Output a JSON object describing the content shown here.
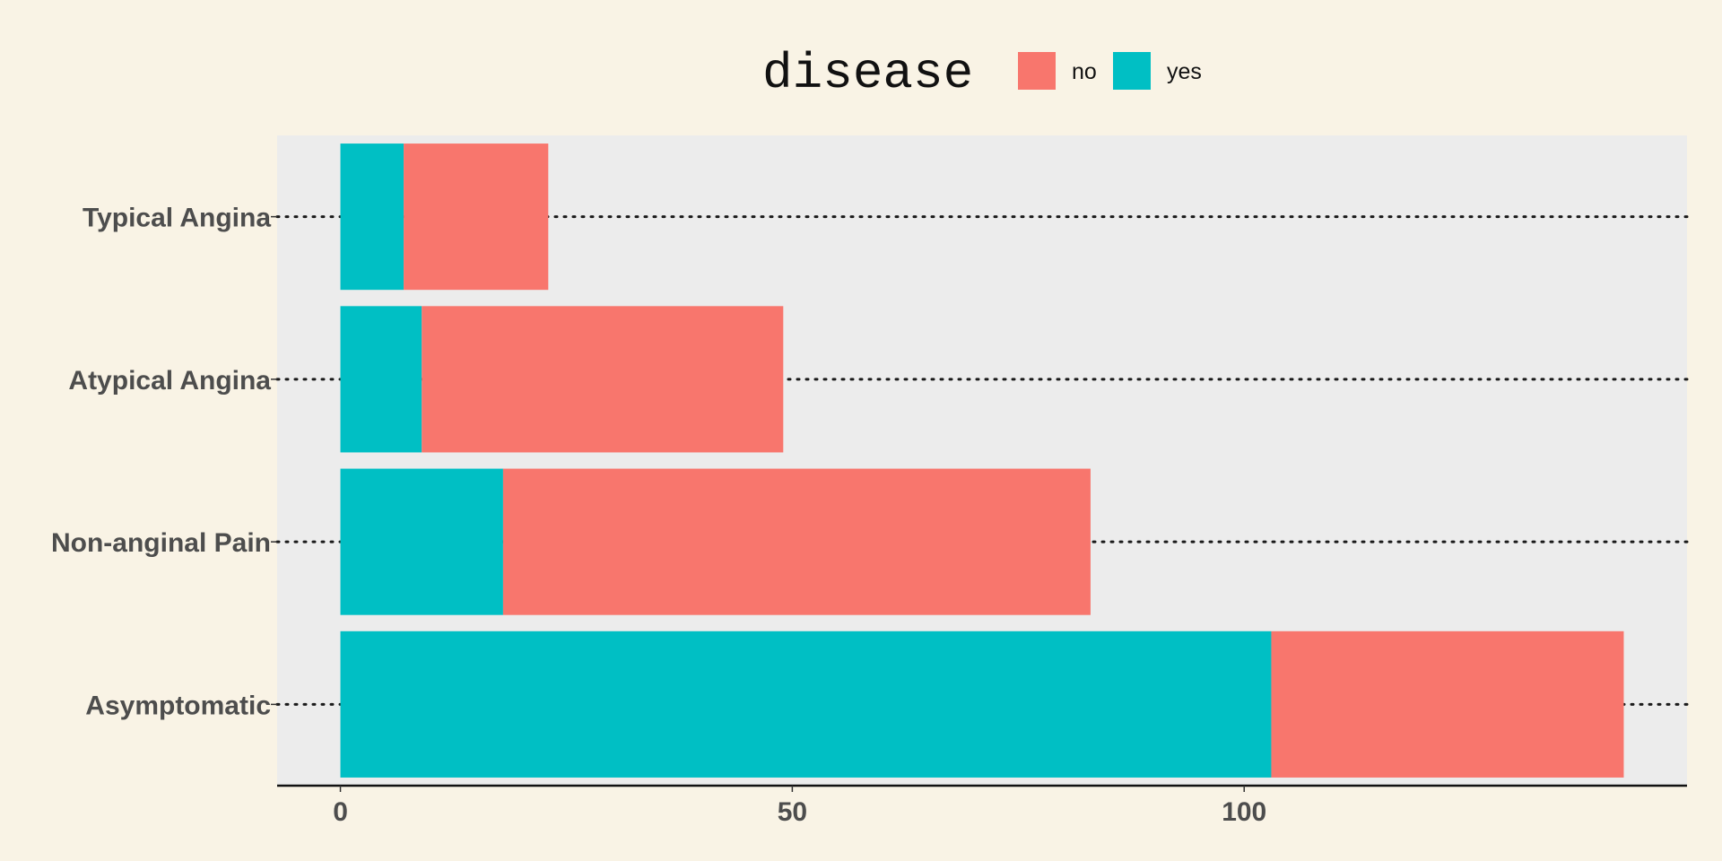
{
  "chart_data": {
    "type": "bar",
    "orientation": "horizontal",
    "stacked": true,
    "categories": [
      "Typical Angina",
      "Atypical Angina",
      "Non-anginal Pain",
      "Asymptomatic"
    ],
    "series": [
      {
        "name": "yes",
        "values": [
          7,
          9,
          18,
          103
        ],
        "color": "#00bfc4"
      },
      {
        "name": "no",
        "values": [
          16,
          40,
          65,
          39
        ],
        "color": "#f8766d"
      }
    ],
    "legend": {
      "title": "disease",
      "placement": "top",
      "order": [
        "no",
        "yes"
      ]
    },
    "xticks": [
      0,
      50,
      100
    ],
    "xlim": [
      -7,
      149
    ],
    "title": "",
    "xlabel": "",
    "ylabel": "",
    "grid": "horizontal dotted lines at categories",
    "panel_color": "#ececec",
    "background_color": "#f9f3e5"
  }
}
